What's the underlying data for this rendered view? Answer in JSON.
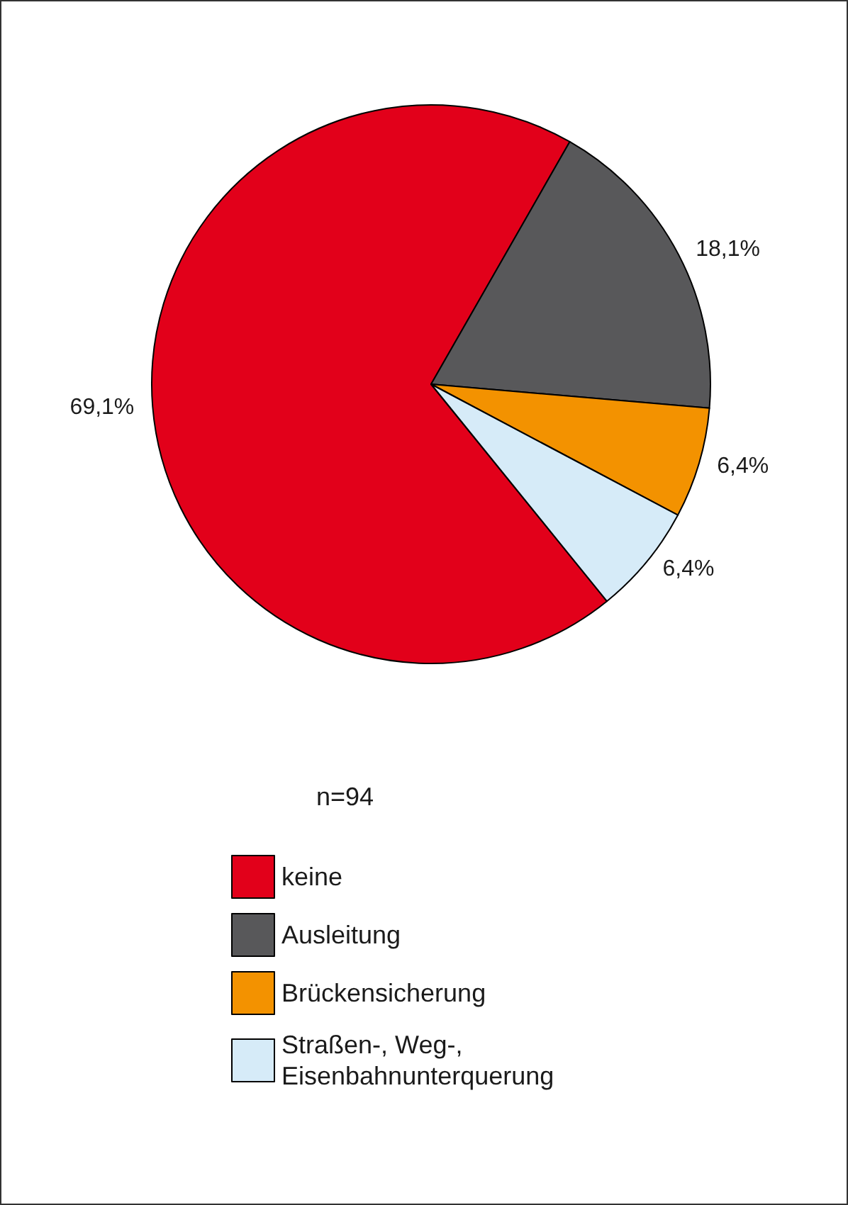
{
  "chart_data": {
    "type": "pie",
    "categories": [
      "keine",
      "Ausleitung",
      "Brückensicherung",
      "Straßen-, Weg-, Eisenbahnunterquerung"
    ],
    "values": [
      69.1,
      18.1,
      6.4,
      6.4
    ],
    "colors": [
      "#e2001a",
      "#58585a",
      "#f39200",
      "#d6ebf8"
    ],
    "value_labels": [
      "69,1%",
      "18,1%",
      "6,4%",
      "6,4%"
    ],
    "annotations": [
      "n=94"
    ],
    "legend": "bottom"
  }
}
